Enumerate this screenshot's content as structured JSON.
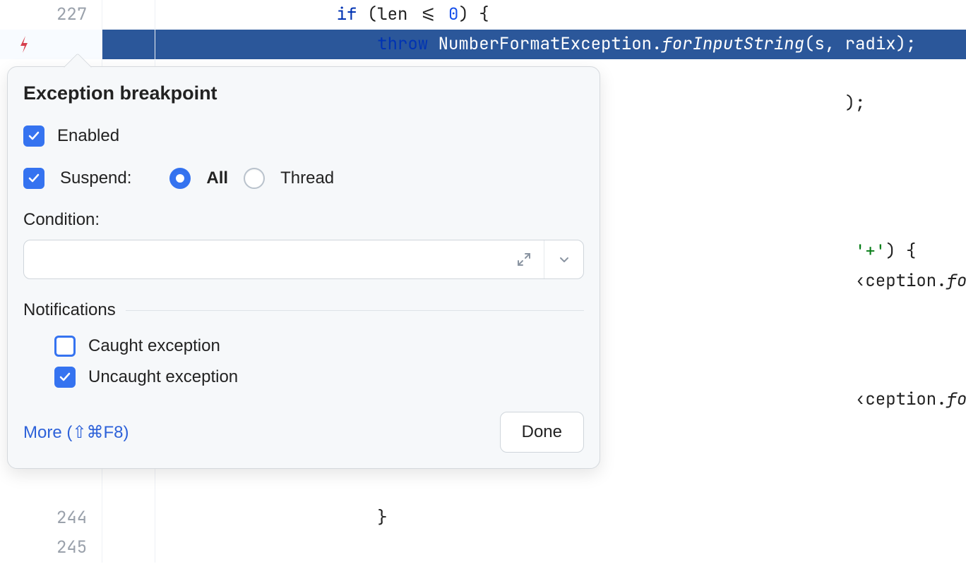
{
  "colors": {
    "accent": "#3573f0",
    "highlight_bg": "#2b579a",
    "keyword": "#0033b3",
    "number": "#1750eb",
    "string": "#067d17",
    "popup_bg": "#f6f8fa",
    "link": "#2e62d9",
    "breakpoint_icon": "#d6404e"
  },
  "code": {
    "lines": [
      {
        "num": "227",
        "highlight": false,
        "bp": false,
        "indent": "              ",
        "tokens": [
          {
            "t": "if",
            "c": "kw"
          },
          {
            "t": " (len "
          },
          {
            "t": "<=",
            "c": ""
          },
          {
            "t": " "
          },
          {
            "t": "0",
            "c": "num"
          },
          {
            "t": ") {"
          }
        ]
      },
      {
        "num": "",
        "highlight": true,
        "bp": true,
        "indent": "                  ",
        "tokens": [
          {
            "t": "throw ",
            "c": "kw"
          },
          {
            "t": "NumberFormatException."
          },
          {
            "t": "forInputString",
            "c": "ital"
          },
          {
            "t": "(s, radix);"
          }
        ]
      },
      {
        "num": "",
        "highlight": false,
        "bp": false,
        "indent": "",
        "tokens": []
      },
      {
        "num": "",
        "highlight": false,
        "bp": false,
        "indent": "                                                                ",
        "tokens": [
          {
            "t": ");"
          }
        ]
      },
      {
        "num": "",
        "highlight": false,
        "bp": false,
        "indent": "",
        "tokens": []
      },
      {
        "num": "",
        "highlight": false,
        "bp": false,
        "indent": "",
        "tokens": []
      },
      {
        "num": "",
        "highlight": false,
        "bp": false,
        "indent": "",
        "tokens": []
      },
      {
        "num": "",
        "highlight": false,
        "bp": false,
        "indent": "",
        "tokens": []
      },
      {
        "num": "",
        "highlight": false,
        "bp": false,
        "indent": "                                                                 ",
        "tokens": [
          {
            "t": "'+'",
            "c": "str"
          },
          {
            "t": ") {"
          }
        ]
      },
      {
        "num": "",
        "highlight": false,
        "bp": false,
        "indent": "                                                                 ",
        "tokens": [
          {
            "t": "‹ception."
          },
          {
            "t": "forInputString",
            "c": "ital"
          },
          {
            "t": "(s, radix);"
          }
        ]
      },
      {
        "num": "",
        "highlight": false,
        "bp": false,
        "indent": "",
        "tokens": []
      },
      {
        "num": "",
        "highlight": false,
        "bp": false,
        "indent": "",
        "tokens": []
      },
      {
        "num": "",
        "highlight": false,
        "bp": false,
        "indent": "",
        "tokens": []
      },
      {
        "num": "",
        "highlight": false,
        "bp": false,
        "indent": "                                                                 ",
        "tokens": [
          {
            "t": "‹ception."
          },
          {
            "t": "forInputString",
            "c": "ital"
          },
          {
            "t": "(s, radix);"
          }
        ]
      },
      {
        "num": "",
        "highlight": false,
        "bp": false,
        "indent": "",
        "tokens": []
      },
      {
        "num": "",
        "highlight": false,
        "bp": false,
        "indent": "",
        "tokens": []
      },
      {
        "num": "",
        "highlight": false,
        "bp": false,
        "indent": "",
        "tokens": []
      },
      {
        "num": "244",
        "highlight": false,
        "bp": false,
        "indent": "                  ",
        "tokens": [
          {
            "t": "}"
          }
        ]
      },
      {
        "num": "245",
        "highlight": false,
        "bp": false,
        "indent": "",
        "tokens": []
      }
    ]
  },
  "popup": {
    "title": "Exception breakpoint",
    "enabled": {
      "label": "Enabled",
      "checked": true
    },
    "suspend": {
      "label": "Suspend:",
      "checked": true,
      "options": [
        {
          "label": "All",
          "selected": true
        },
        {
          "label": "Thread",
          "selected": false
        }
      ]
    },
    "condition": {
      "label": "Condition:",
      "value": ""
    },
    "notifications": {
      "title": "Notifications",
      "items": [
        {
          "label": "Caught exception",
          "checked": false,
          "accent": true
        },
        {
          "label": "Uncaught exception",
          "checked": true,
          "accent": false
        }
      ]
    },
    "more_label": "More (⇧⌘F8)",
    "done_label": "Done"
  }
}
